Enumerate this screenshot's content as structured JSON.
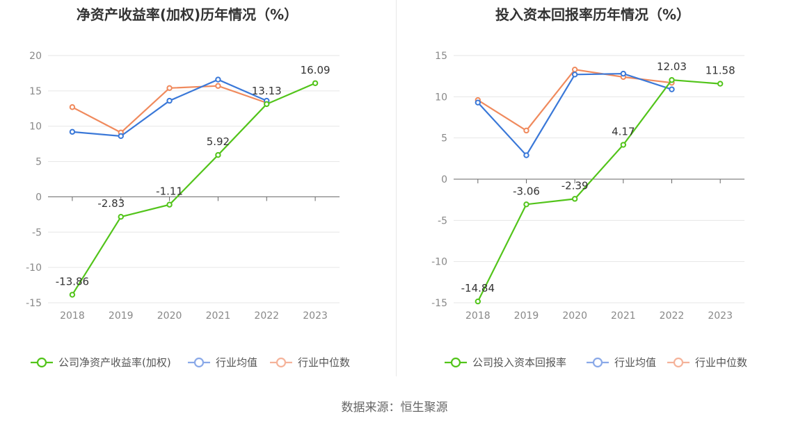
{
  "source": "数据来源：恒生聚源",
  "colors": {
    "company": "#52c41a",
    "avg": "#3a78d8",
    "median": "#f08a5d",
    "legend_avg": "#8aa9e8",
    "legend_median": "#f5b39a",
    "axis_text": "#888888",
    "label_text": "#333333",
    "title_text": "#333333",
    "grid": "#e6e6e6",
    "axis_line": "#666666"
  },
  "chart_data": [
    {
      "type": "line",
      "title": "净资产收益率(加权)历年情况（%）",
      "categories": [
        "2018",
        "2019",
        "2020",
        "2021",
        "2022",
        "2023"
      ],
      "ylim": [
        -15,
        20
      ],
      "yticks": [
        20,
        15,
        10,
        5,
        0,
        -5,
        -10,
        -15
      ],
      "ytick_labels": [
        "20",
        "15",
        "10",
        "5",
        "0",
        "-5",
        "-10",
        "-15"
      ],
      "grid": true,
      "legend_position": "bottom",
      "series": [
        {
          "name": "公司净资产收益率(加权)",
          "key": "company",
          "values": [
            -13.86,
            -2.83,
            -1.11,
            5.92,
            13.13,
            16.09
          ],
          "labels": [
            "-13.86",
            "-2.83",
            "-1.11",
            "5.92",
            "13.13",
            "16.09"
          ]
        },
        {
          "name": "行业均值",
          "key": "avg",
          "values": [
            9.2,
            8.6,
            13.6,
            16.6,
            13.6,
            null
          ]
        },
        {
          "name": "行业中位数",
          "key": "median",
          "values": [
            12.7,
            9.1,
            15.4,
            15.7,
            13.3,
            null
          ]
        }
      ]
    },
    {
      "type": "line",
      "title": "投入资本回报率历年情况（%）",
      "categories": [
        "2018",
        "2019",
        "2020",
        "2021",
        "2022",
        "2023"
      ],
      "ylim": [
        -15,
        15
      ],
      "yticks": [
        15,
        10,
        5,
        0,
        -5,
        -10,
        -15
      ],
      "ytick_labels": [
        "15",
        "10",
        "5",
        "0",
        "-5",
        "-10",
        "-15"
      ],
      "grid": true,
      "legend_position": "bottom",
      "series": [
        {
          "name": "公司投入资本回报率",
          "key": "company",
          "values": [
            -14.84,
            -3.06,
            -2.39,
            4.17,
            12.03,
            11.58
          ],
          "labels": [
            "-14.84",
            "-3.06",
            "-2.39",
            "4.17",
            "12.03",
            "11.58"
          ]
        },
        {
          "name": "行业均值",
          "key": "avg",
          "values": [
            9.3,
            2.9,
            12.7,
            12.8,
            10.9,
            null
          ]
        },
        {
          "name": "行业中位数",
          "key": "median",
          "values": [
            9.6,
            5.9,
            13.3,
            12.4,
            11.7,
            null
          ]
        }
      ]
    }
  ]
}
